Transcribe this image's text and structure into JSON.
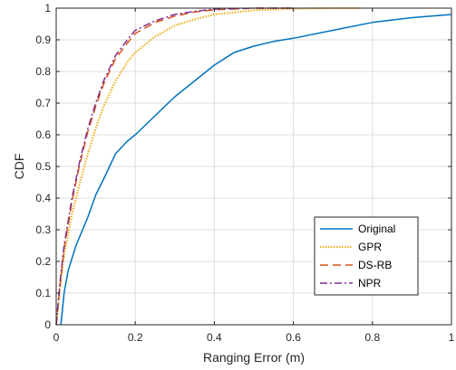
{
  "chart_data": {
    "type": "line",
    "xlabel": "Ranging Error (m)",
    "ylabel": "CDF",
    "xlim": [
      0,
      1
    ],
    "ylim": [
      0,
      1
    ],
    "x_ticks": [
      "0",
      "0.2",
      "0.4",
      "0.6",
      "0.8",
      "1"
    ],
    "y_ticks": [
      "0",
      "0.1",
      "0.2",
      "0.3",
      "0.4",
      "0.5",
      "0.6",
      "0.7",
      "0.8",
      "0.9",
      "1"
    ],
    "grid": true,
    "legend_position": "bottom-right",
    "series": [
      {
        "name": "Original",
        "color": "#0072BD",
        "style": "solid",
        "x": [
          0.012,
          0.02,
          0.03,
          0.05,
          0.08,
          0.1,
          0.12,
          0.15,
          0.18,
          0.2,
          0.25,
          0.3,
          0.35,
          0.4,
          0.45,
          0.5,
          0.55,
          0.6,
          0.7,
          0.8,
          0.9,
          1.0
        ],
        "y": [
          0,
          0.1,
          0.17,
          0.25,
          0.34,
          0.41,
          0.46,
          0.54,
          0.58,
          0.6,
          0.66,
          0.72,
          0.77,
          0.82,
          0.86,
          0.88,
          0.895,
          0.905,
          0.93,
          0.955,
          0.97,
          0.98
        ]
      },
      {
        "name": "GPR",
        "color": "#EDB120",
        "style": "dotted",
        "x": [
          0,
          0.01,
          0.02,
          0.04,
          0.06,
          0.08,
          0.1,
          0.12,
          0.15,
          0.18,
          0.2,
          0.25,
          0.3,
          0.35,
          0.4,
          0.5,
          0.6,
          0.7,
          0.77
        ],
        "y": [
          0,
          0.12,
          0.22,
          0.35,
          0.45,
          0.54,
          0.62,
          0.69,
          0.77,
          0.83,
          0.86,
          0.91,
          0.945,
          0.965,
          0.98,
          0.993,
          0.998,
          1.0,
          1.0
        ]
      },
      {
        "name": "DS-RB",
        "color": "#D95319",
        "style": "dashed",
        "x": [
          0,
          0.01,
          0.02,
          0.04,
          0.06,
          0.08,
          0.1,
          0.12,
          0.15,
          0.18,
          0.2,
          0.25,
          0.3,
          0.35,
          0.4,
          0.5,
          0.6
        ],
        "y": [
          0,
          0.13,
          0.24,
          0.39,
          0.51,
          0.61,
          0.69,
          0.76,
          0.84,
          0.89,
          0.92,
          0.955,
          0.975,
          0.988,
          0.995,
          1.0,
          1.0
        ]
      },
      {
        "name": "NPR",
        "color": "#7E2F8E",
        "style": "dashdot",
        "x": [
          0,
          0.01,
          0.02,
          0.04,
          0.06,
          0.08,
          0.1,
          0.12,
          0.15,
          0.18,
          0.2,
          0.25,
          0.3,
          0.35,
          0.4,
          0.5,
          0.6
        ],
        "y": [
          0,
          0.14,
          0.25,
          0.4,
          0.52,
          0.62,
          0.7,
          0.77,
          0.85,
          0.9,
          0.93,
          0.96,
          0.98,
          0.99,
          0.997,
          1.0,
          1.0
        ]
      }
    ]
  }
}
